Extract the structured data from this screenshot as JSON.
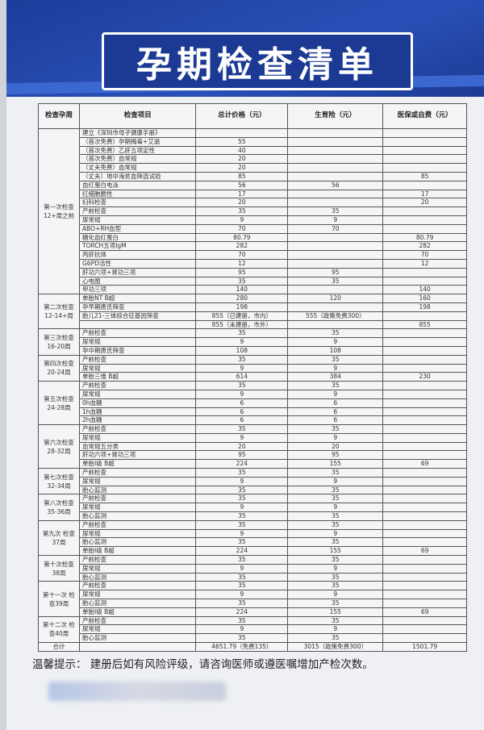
{
  "title": "孕期检查清单",
  "headers": [
    "检查孕周",
    "检查项目",
    "总计价格（元）",
    "生育险（元）",
    "医保或自费（元）"
  ],
  "groups": [
    {
      "period": "第一次检查 12+周之前",
      "rows": [
        [
          "建立《深圳市母子健康手册》",
          "",
          "",
          ""
        ],
        [
          "（首次免费）孕期梅毒+艾滋",
          "55",
          "",
          ""
        ],
        [
          "（首次免费）乙肝五项定性",
          "40",
          "",
          ""
        ],
        [
          "（首次免费）血常规",
          "20",
          "",
          ""
        ],
        [
          "（丈夫免费）血常规",
          "20",
          "",
          ""
        ],
        [
          "（丈夫）地中海贫血筛选试验",
          "85",
          "",
          "85"
        ],
        [
          "血红蛋白电泳",
          "56",
          "56",
          ""
        ],
        [
          "红细胞脆性",
          "17",
          "",
          "17"
        ],
        [
          "妇科检查",
          "20",
          "",
          "20"
        ],
        [
          "产前检查",
          "35",
          "35",
          ""
        ],
        [
          "尿常规",
          "9",
          "9",
          ""
        ],
        [
          "ABO+RH血型",
          "70",
          "70",
          ""
        ],
        [
          "糖化血红蛋白",
          "80.79",
          "",
          "80.79"
        ],
        [
          "TORCH五项IgM",
          "282",
          "",
          "282"
        ],
        [
          "丙肝抗体",
          "70",
          "",
          "70"
        ],
        [
          "G6PD活性",
          "12",
          "",
          "12"
        ],
        [
          "肝功六项+肾功三项",
          "95",
          "95",
          ""
        ],
        [
          "心电图",
          "35",
          "35",
          ""
        ],
        [
          "甲功三项",
          "140",
          "",
          "140"
        ]
      ]
    },
    {
      "period": "第二次检查 12-14+周",
      "rows": [
        [
          "单胎NT B超",
          "280",
          "120",
          "160"
        ],
        [
          "孕早期唐氏筛查",
          "198",
          "",
          "198"
        ],
        [
          "胎儿21-三体综合征基因筛查",
          "855（已建册，市内）",
          "555（政策免费300）",
          ""
        ],
        [
          "",
          "855（未建册，市外）",
          "",
          "855"
        ]
      ]
    },
    {
      "period": "第三次检查 16-20周",
      "rows": [
        [
          "产前检查",
          "35",
          "35",
          ""
        ],
        [
          "尿常规",
          "9",
          "9",
          ""
        ],
        [
          "孕中期唐氏筛查",
          "108",
          "108",
          ""
        ]
      ]
    },
    {
      "period": "第四次检查 20-24周",
      "rows": [
        [
          "产前检查",
          "35",
          "35",
          ""
        ],
        [
          "尿常规",
          "9",
          "9",
          ""
        ],
        [
          "单胎三维 B超",
          "614",
          "384",
          "230"
        ]
      ]
    },
    {
      "period": "第五次检查 24-28周",
      "rows": [
        [
          "产前检查",
          "35",
          "35",
          ""
        ],
        [
          "尿常规",
          "9",
          "9",
          ""
        ],
        [
          "0h血糖",
          "6",
          "6",
          ""
        ],
        [
          "1h血糖",
          "6",
          "6",
          ""
        ],
        [
          "2h血糖",
          "6",
          "6",
          ""
        ]
      ]
    },
    {
      "period": "第六次检查 28-32周",
      "rows": [
        [
          "产前检查",
          "35",
          "35",
          ""
        ],
        [
          "尿常规",
          "9",
          "9",
          ""
        ],
        [
          "血常规五分类",
          "20",
          "20",
          ""
        ],
        [
          "肝功六项+肾功三项",
          "95",
          "95",
          ""
        ],
        [
          "单胎Ⅰ级 B超",
          "224",
          "155",
          "69"
        ]
      ]
    },
    {
      "period": "第七次检查 32-34周",
      "rows": [
        [
          "产前检查",
          "35",
          "35",
          ""
        ],
        [
          "尿常规",
          "9",
          "9",
          ""
        ],
        [
          "胎心监测",
          "35",
          "35",
          ""
        ]
      ]
    },
    {
      "period": "第八次检查 35-36周",
      "rows": [
        [
          "产前检查",
          "35",
          "35",
          ""
        ],
        [
          "尿常规",
          "9",
          "9",
          ""
        ],
        [
          "胎心监测",
          "35",
          "35",
          ""
        ]
      ]
    },
    {
      "period": "第九次 检查37周",
      "rows": [
        [
          "产前检查",
          "35",
          "35",
          ""
        ],
        [
          "尿常规",
          "9",
          "9",
          ""
        ],
        [
          "胎心监测",
          "35",
          "35",
          ""
        ],
        [
          "单胎Ⅰ级 B超",
          "224",
          "155",
          "69"
        ]
      ]
    },
    {
      "period": "第十次检查 38周",
      "rows": [
        [
          "产前检查",
          "35",
          "35",
          ""
        ],
        [
          "尿常规",
          "9",
          "9",
          ""
        ],
        [
          "胎心监测",
          "35",
          "35",
          ""
        ]
      ]
    },
    {
      "period": "第十一次 检查39周",
      "rows": [
        [
          "产前检查",
          "35",
          "35",
          ""
        ],
        [
          "尿常规",
          "9",
          "9",
          ""
        ],
        [
          "胎心监测",
          "35",
          "35",
          ""
        ],
        [
          "单胎Ⅰ级 B超",
          "224",
          "155",
          "69"
        ]
      ]
    },
    {
      "period": "第十二次 检查40周",
      "rows": [
        [
          "产前检查",
          "35",
          "35",
          ""
        ],
        [
          "尿常规",
          "9",
          "9",
          ""
        ],
        [
          "胎心监测",
          "35",
          "35",
          ""
        ]
      ]
    }
  ],
  "total": {
    "label": "合计",
    "values": [
      "4651.79（免费135）",
      "3015（政策免费300）",
      "1501.79"
    ]
  },
  "note": "温馨提示：  建册后如有风险评级，请咨询医师或遵医嘱增加产检次数。",
  "colors": {
    "band": "#1d3d9a",
    "title_text": "#ffffff"
  }
}
